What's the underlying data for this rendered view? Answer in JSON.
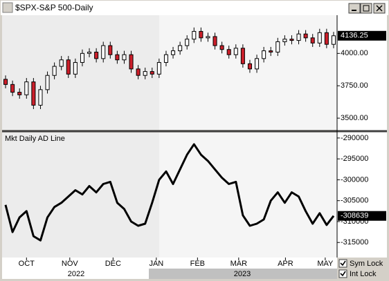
{
  "window": {
    "title": "$SPX-S&P 500-Daily"
  },
  "timeline": [
    "2022",
    "2023"
  ],
  "controls": [
    {
      "label": "Sym Lock",
      "checked": true
    },
    {
      "label": "Int Lock",
      "checked": true
    }
  ],
  "chart_data": [
    {
      "type": "candlestick",
      "open": [
        3800,
        3760,
        3700,
        3680,
        3780,
        3600,
        3720,
        3830,
        3900,
        3950,
        3840,
        3930,
        4000,
        4010,
        3960,
        4060,
        3990,
        3950,
        3990,
        3880,
        3830,
        3860,
        3840,
        3930,
        3990,
        4020,
        4060,
        4110,
        4170,
        4120,
        4130,
        4060,
        4030,
        3990,
        4040,
        3920,
        3880,
        3960,
        4020,
        4010,
        4090,
        4110,
        4100,
        4150,
        4120,
        4080,
        4160,
        4070
      ],
      "high": [
        3830,
        3790,
        3730,
        3810,
        3810,
        3750,
        3860,
        3930,
        3980,
        3980,
        3960,
        4030,
        4040,
        4040,
        4090,
        4090,
        4020,
        4020,
        4020,
        3910,
        3890,
        3890,
        3960,
        4020,
        4050,
        4090,
        4140,
        4200,
        4200,
        4160,
        4160,
        4090,
        4060,
        4070,
        4070,
        3950,
        3990,
        4050,
        4050,
        4120,
        4140,
        4140,
        4180,
        4180,
        4150,
        4190,
        4190,
        4166.25
      ],
      "low": [
        3730,
        3670,
        3650,
        3650,
        3570,
        3570,
        3690,
        3800,
        3870,
        3810,
        3810,
        3900,
        3970,
        3930,
        3930,
        3960,
        3920,
        3920,
        3850,
        3800,
        3800,
        3810,
        3810,
        3900,
        3960,
        3990,
        4030,
        4080,
        4090,
        4090,
        4030,
        4000,
        3960,
        3960,
        3890,
        3850,
        3850,
        3930,
        3980,
        3980,
        4060,
        4070,
        4070,
        4090,
        4050,
        4050,
        4040,
        4040
      ],
      "close": [
        3760,
        3700,
        3680,
        3780,
        3600,
        3720,
        3830,
        3900,
        3950,
        3840,
        3930,
        4000,
        4010,
        3960,
        4060,
        3990,
        3950,
        3990,
        3880,
        3830,
        3860,
        3840,
        3930,
        3990,
        4020,
        4060,
        4110,
        4170,
        4120,
        4130,
        4060,
        4030,
        3990,
        4040,
        3920,
        3880,
        3960,
        4020,
        4010,
        4090,
        4110,
        4100,
        4150,
        4120,
        4080,
        4160,
        4070,
        4136.25
      ],
      "up_color": "#ffffff",
      "down_color": "#cc1f2a",
      "xlim": [
        0,
        48
      ],
      "ylim": [
        3410,
        4295
      ],
      "yticks": [
        {
          "value": 4000,
          "label": "4000.00"
        },
        {
          "value": 3750,
          "label": "3750.00"
        },
        {
          "value": 3500,
          "label": "3500.00"
        }
      ]
    },
    {
      "type": "line",
      "title": "Mkt Daily AD Line",
      "color": "#000000",
      "values": [
        -306000,
        -312500,
        -309000,
        -307500,
        -313500,
        -314500,
        -309000,
        -306500,
        -305500,
        -304000,
        -302500,
        -303500,
        -301500,
        -303000,
        -301000,
        -300500,
        -305500,
        -307000,
        -310000,
        -311000,
        -310500,
        -305500,
        -300000,
        -298000,
        -301000,
        -297500,
        -294000,
        -291500,
        -294000,
        -295500,
        -297500,
        -299500,
        -301000,
        -300500,
        -308500,
        -311000,
        -310500,
        -309500,
        -305000,
        -303000,
        -305500,
        -303000,
        -304000,
        -307500,
        -310500,
        -308000,
        -310800,
        -308639
      ],
      "xlim": [
        0,
        48
      ],
      "ylim": [
        -318600,
        -288700
      ],
      "yticks": [
        -290000,
        -295000,
        -300000,
        -305000,
        -310000,
        -315000
      ],
      "xticks": [
        {
          "value": 3.5,
          "label": "OCT"
        },
        {
          "value": 9.7,
          "label": "NOV"
        },
        {
          "value": 15.9,
          "label": "DEC"
        },
        {
          "value": 22.1,
          "label": "JAN"
        },
        {
          "value": 28,
          "label": "FEB"
        },
        {
          "value": 33.9,
          "label": "MAR"
        },
        {
          "value": 40.6,
          "label": "APR"
        },
        {
          "value": 46.3,
          "label": "MAY"
        }
      ]
    }
  ]
}
